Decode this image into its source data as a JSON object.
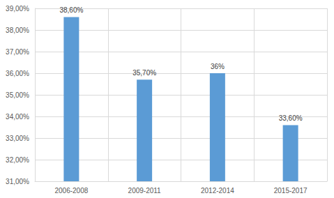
{
  "chart_data": {
    "type": "bar",
    "categories": [
      "2006-2008",
      "2009-2011",
      "2012-2014",
      "2015-2017"
    ],
    "values": [
      38.6,
      35.7,
      36,
      33.6
    ],
    "value_labels": [
      "38,60%",
      "35,70%",
      "36%",
      "33,60%"
    ],
    "data_labels": true,
    "color": "#5b9bd5",
    "ylim": [
      31,
      39
    ],
    "yticks": [
      {
        "value": 31,
        "label": "31,00%"
      },
      {
        "value": 32,
        "label": "32,00%"
      },
      {
        "value": 33,
        "label": "33,00%"
      },
      {
        "value": 34,
        "label": "34,00%"
      },
      {
        "value": 35,
        "label": "35,00%"
      },
      {
        "value": 36,
        "label": "36,00%"
      },
      {
        "value": 37,
        "label": "37,00%"
      },
      {
        "value": 38,
        "label": "38,00%"
      },
      {
        "value": 39,
        "label": "39,00%"
      }
    ],
    "grid": true
  }
}
